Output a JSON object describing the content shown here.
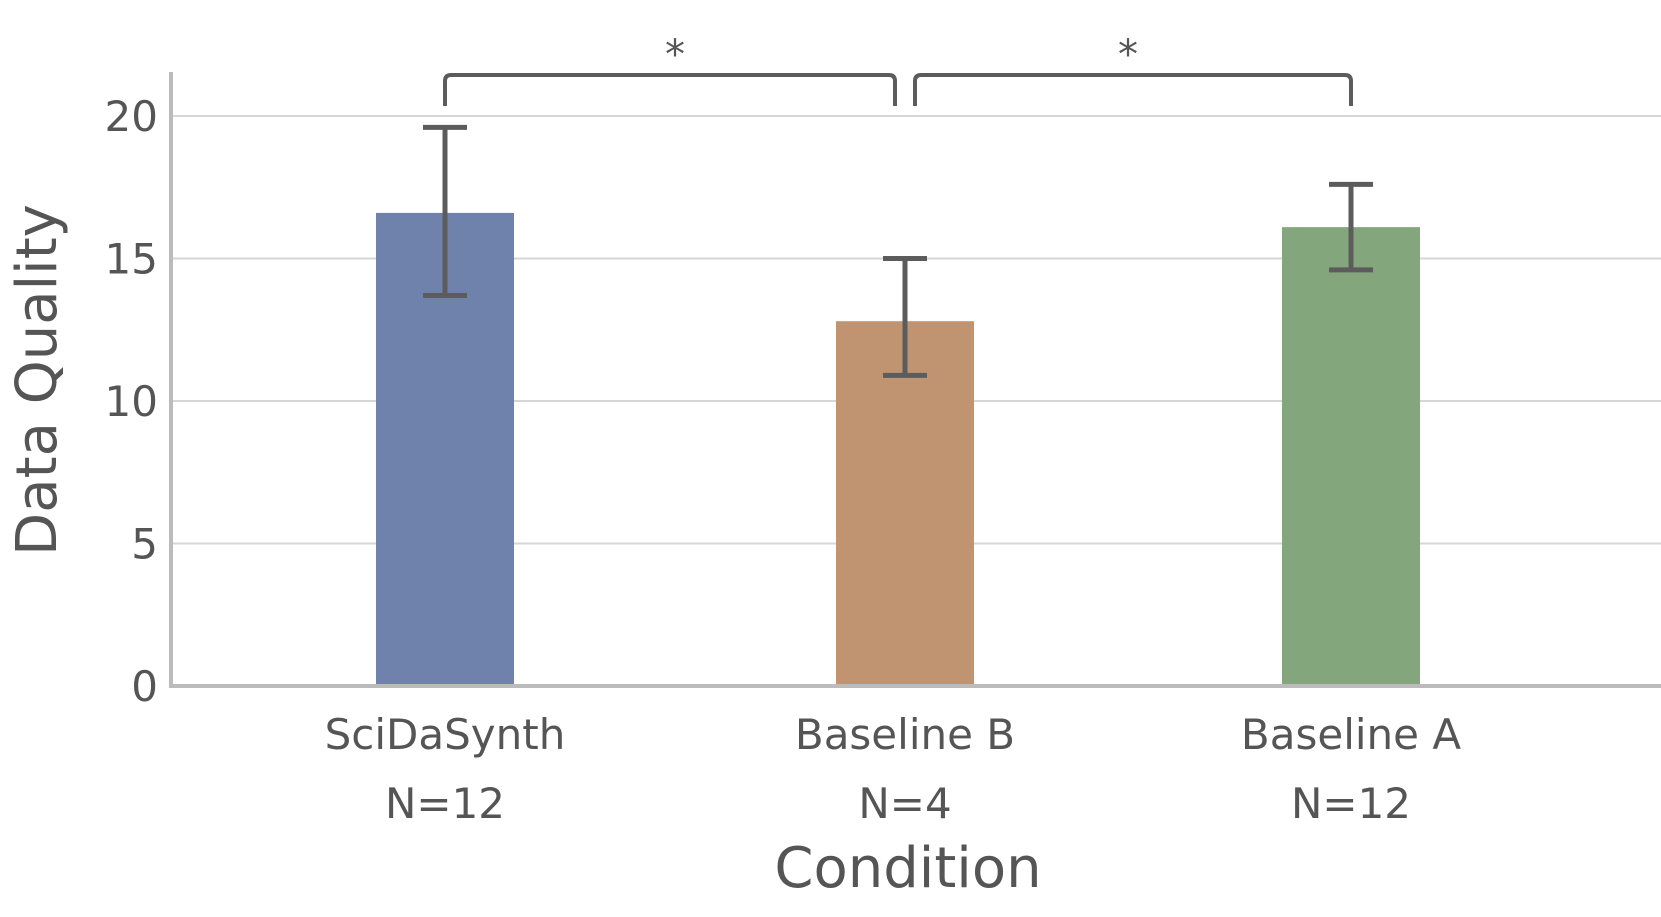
{
  "chart_data": {
    "type": "bar",
    "xlabel": "Condition",
    "ylabel": "Data Quality",
    "ylim": [
      0,
      21.5
    ],
    "yticks": [
      0,
      5,
      10,
      15,
      20
    ],
    "grid": "horizontal",
    "categories": [
      "SciDaSynth",
      "Baseline B",
      "Baseline A"
    ],
    "sample_sizes": [
      "N=12",
      "N=4",
      "N=12"
    ],
    "values": [
      16.6,
      12.8,
      16.1
    ],
    "error_low": [
      13.7,
      10.9,
      14.6
    ],
    "error_high": [
      19.6,
      15.0,
      17.6
    ],
    "colors": [
      "#6f82ab",
      "#c09470",
      "#84a67d"
    ],
    "significance": [
      {
        "from": 0,
        "to": 1,
        "label": "*"
      },
      {
        "from": 1,
        "to": 2,
        "label": "*"
      }
    ]
  }
}
